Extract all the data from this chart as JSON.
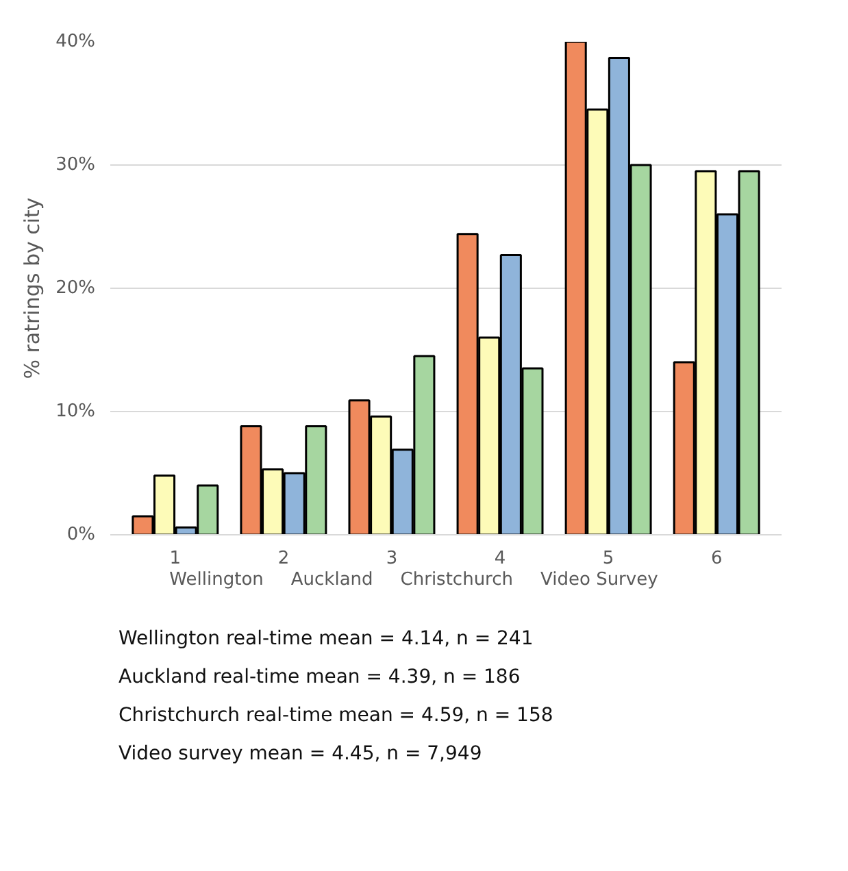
{
  "chart_data": {
    "type": "bar",
    "categories": [
      "1",
      "2",
      "3",
      "4",
      "5",
      "6"
    ],
    "series": [
      {
        "name": "Wellington",
        "color": "#f08a5d",
        "values": [
          1.5,
          8.8,
          10.9,
          24.4,
          40,
          14
        ]
      },
      {
        "name": "Auckland",
        "color": "#fdfbb8",
        "values": [
          4.8,
          5.3,
          9.6,
          16,
          34.5,
          29.5
        ]
      },
      {
        "name": "Christchurch",
        "color": "#8fb4da",
        "values": [
          0.6,
          5,
          6.9,
          22.7,
          38.7,
          26
        ]
      },
      {
        "name": "Video Survey",
        "color": "#a6d6a0",
        "values": [
          4,
          8.8,
          14.5,
          13.5,
          30,
          29.5
        ]
      }
    ],
    "ylabel": "% ratrings by city",
    "ylim": [
      0,
      40
    ],
    "yticks": [
      {
        "value": 0,
        "label": "0%"
      },
      {
        "value": 10,
        "label": "10%"
      },
      {
        "value": 20,
        "label": "20%"
      },
      {
        "value": 30,
        "label": "30%"
      },
      {
        "value": 40,
        "label": "40%"
      }
    ],
    "grid": "y",
    "legend": "bottom",
    "annotations": [
      "Wellington real-time mean = 4.14, n = 241",
      "Auckland real-time mean = 4.39, n = 186",
      "Christchurch real-time mean = 4.59, n = 158",
      "Video survey mean = 4.45, n = 7,949"
    ]
  }
}
